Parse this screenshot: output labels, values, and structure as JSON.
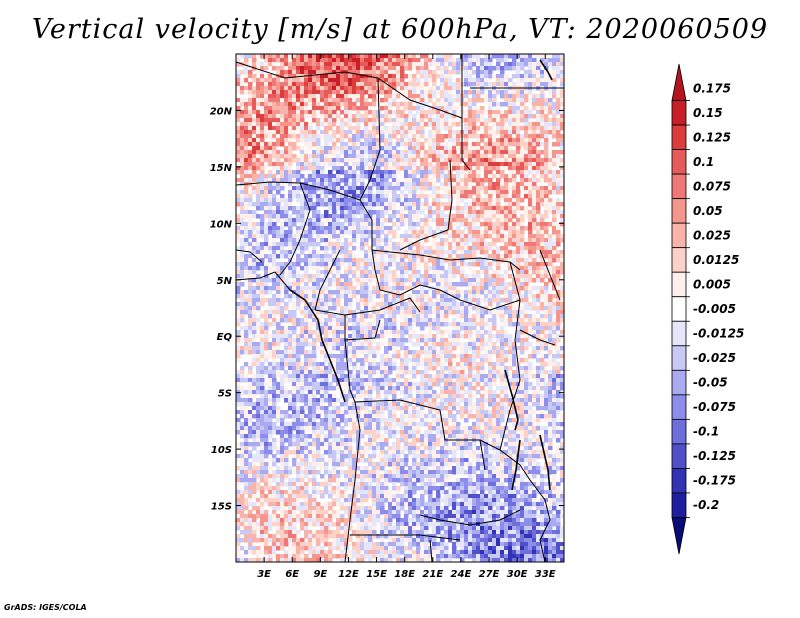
{
  "title": "Vertical velocity [m/s] at 600hPa, VT: 2020060509",
  "credit": "GrADS: IGES/COLA",
  "chart_data": {
    "type": "heatmap",
    "variable": "Vertical velocity",
    "units": "m/s",
    "level": "600hPa",
    "valid_time": "2020060509",
    "lon_range": [
      0.0,
      35.0
    ],
    "lat_range": [
      -20.0,
      25.0
    ],
    "lon_ticks": [
      "3E",
      "6E",
      "9E",
      "12E",
      "15E",
      "18E",
      "21E",
      "24E",
      "27E",
      "30E",
      "33E"
    ],
    "lon_tick_values": [
      3,
      6,
      9,
      12,
      15,
      18,
      21,
      24,
      27,
      30,
      33
    ],
    "lat_ticks": [
      "20N",
      "15N",
      "10N",
      "5N",
      "EQ",
      "5S",
      "10S",
      "15S"
    ],
    "lat_tick_values": [
      20,
      15,
      10,
      5,
      0,
      -5,
      -10,
      -15
    ],
    "colorbar_levels": [
      "0.175",
      "0.15",
      "0.125",
      "0.1",
      "0.075",
      "0.05",
      "0.025",
      "0.0125",
      "0.005",
      "-0.005",
      "-0.0125",
      "-0.025",
      "-0.05",
      "-0.075",
      "-0.1",
      "-0.125",
      "-0.175",
      "-0.2"
    ],
    "colorbar_colors": [
      "#b4141e",
      "#c81e28",
      "#dc3c3c",
      "#e65a5a",
      "#ee7878",
      "#f4968c",
      "#f8b4aa",
      "#fcd2c8",
      "#fff0ec",
      "#ffffff",
      "#e6e6fa",
      "#c8c8f5",
      "#aaaaf0",
      "#8c8ceb",
      "#6e6edc",
      "#5050c8",
      "#3232b4",
      "#1e1ea0",
      "#0a0a78"
    ]
  }
}
